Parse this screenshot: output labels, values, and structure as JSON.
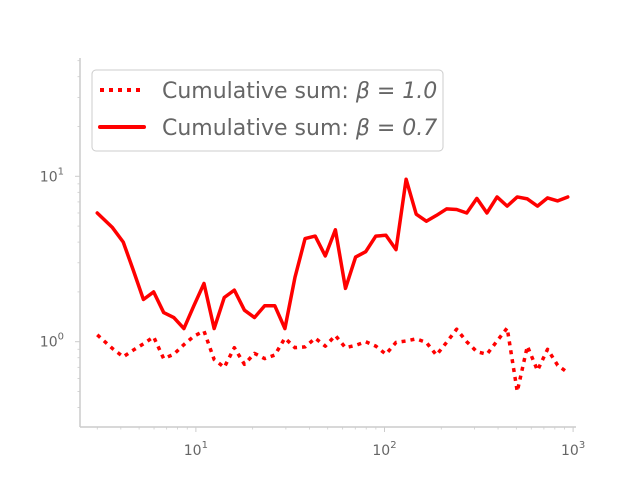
{
  "chart_data": {
    "type": "line",
    "xscale": "log",
    "yscale": "log",
    "xlim": [
      2.43,
      1036
    ],
    "ylim": [
      0.305,
      51.9
    ],
    "grid": false,
    "legend_position": "upper-left",
    "x_ticks": [
      {
        "base": "10",
        "exp": "1",
        "value": 10
      },
      {
        "base": "10",
        "exp": "2",
        "value": 100
      },
      {
        "base": "10",
        "exp": "3",
        "value": 1000
      }
    ],
    "y_ticks": [
      {
        "base": "10",
        "exp": "0",
        "value": 1
      },
      {
        "base": "10",
        "exp": "1",
        "value": 10
      }
    ],
    "series": [
      {
        "name": "Cumulative sum: β = 1.0",
        "legend_prefix": "Cumulative sum: ",
        "legend_math": "β = 1.0",
        "color": "#ff0000",
        "style": "dotted",
        "x": [
          3.0,
          3.61,
          4.12,
          4.66,
          5.27,
          5.97,
          6.75,
          7.64,
          8.64,
          9.76,
          11.04,
          12.5,
          14.14,
          15.99,
          18.09,
          20.46,
          23.16,
          26.2,
          29.64,
          33.53,
          37.93,
          42.91,
          48.54,
          54.91,
          62.12,
          70.28,
          79.5,
          89.94,
          101.75,
          115.11,
          130.22,
          147.31,
          166.65,
          188.53,
          213.28,
          241.28,
          272.95,
          308.79,
          349.33,
          395.19,
          447.07,
          505.76,
          572.16,
          647.28,
          732.25,
          828.38,
          937.13
        ],
        "y": [
          1.1,
          0.91,
          0.81,
          0.89,
          0.97,
          1.07,
          0.79,
          0.84,
          0.96,
          1.08,
          1.16,
          0.78,
          0.7,
          0.92,
          0.73,
          0.85,
          0.79,
          0.83,
          1.05,
          0.92,
          0.93,
          1.05,
          0.94,
          1.09,
          0.92,
          0.95,
          1.0,
          0.94,
          0.84,
          0.99,
          1.01,
          1.04,
          0.99,
          0.83,
          0.99,
          1.19,
          1.0,
          0.87,
          0.84,
          1.01,
          1.21,
          0.5,
          0.94,
          0.67,
          0.9,
          0.72,
          0.65
        ]
      },
      {
        "name": "Cumulative sum: β = 0.7",
        "legend_prefix": "Cumulative sum: ",
        "legend_math": "β = 0.7",
        "color": "#ff0000",
        "style": "solid",
        "x": [
          3.0,
          3.61,
          4.12,
          4.66,
          5.27,
          5.97,
          6.75,
          7.64,
          8.64,
          9.76,
          11.04,
          12.5,
          14.14,
          15.99,
          18.09,
          20.46,
          23.16,
          26.2,
          29.64,
          33.53,
          37.93,
          42.91,
          48.54,
          54.91,
          62.12,
          70.28,
          79.5,
          89.94,
          101.75,
          115.11,
          130.22,
          147.31,
          166.65,
          188.53,
          213.28,
          241.28,
          272.95,
          308.79,
          349.33,
          395.19,
          447.07,
          505.76,
          572.16,
          647.28,
          732.25,
          828.38,
          937.13
        ],
        "y": [
          6.0,
          4.9,
          4.0,
          2.7,
          1.8,
          2.0,
          1.5,
          1.4,
          1.2,
          1.65,
          2.25,
          1.2,
          1.85,
          2.05,
          1.55,
          1.4,
          1.65,
          1.65,
          1.2,
          2.45,
          4.2,
          4.35,
          3.3,
          4.75,
          2.1,
          3.25,
          3.5,
          4.35,
          4.4,
          3.6,
          9.6,
          5.9,
          5.35,
          5.8,
          6.35,
          6.3,
          6.0,
          7.35,
          6.0,
          7.5,
          6.6,
          7.5,
          7.3,
          6.6,
          7.4,
          7.1,
          7.5
        ]
      }
    ]
  }
}
